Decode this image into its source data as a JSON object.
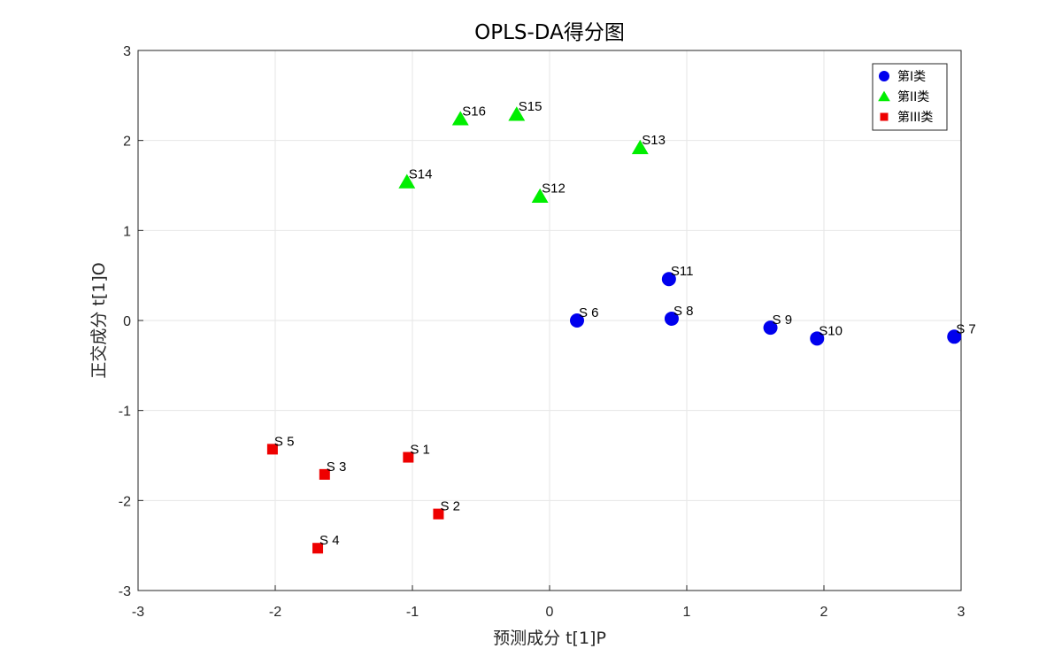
{
  "chart_data": {
    "type": "scatter",
    "title": "OPLS-DA得分图",
    "xlabel": "预测成分 t[1]P",
    "ylabel": "正交成分 t[1]O",
    "xlim": [
      -3,
      3
    ],
    "ylim": [
      -3,
      3
    ],
    "xticks": [
      "-3",
      "-2",
      "-1",
      "0",
      "1",
      "2",
      "3"
    ],
    "yticks": [
      "-3",
      "-2",
      "-1",
      "0",
      "1",
      "2",
      "3"
    ],
    "grid": true,
    "legend_position": "top-right",
    "series": [
      {
        "name": "第I类",
        "marker": "circle",
        "color": "#0000ee",
        "points": [
          {
            "label": "S 6",
            "x": 0.2,
            "y": 0.0
          },
          {
            "label": "S 7",
            "x": 2.95,
            "y": -0.18
          },
          {
            "label": "S 8",
            "x": 0.89,
            "y": 0.02
          },
          {
            "label": "S 9",
            "x": 1.61,
            "y": -0.08
          },
          {
            "label": "S10",
            "x": 1.95,
            "y": -0.2
          },
          {
            "label": "S11",
            "x": 0.87,
            "y": 0.46
          }
        ]
      },
      {
        "name": "第II类",
        "marker": "triangle",
        "color": "#00ee00",
        "points": [
          {
            "label": "S12",
            "x": -0.07,
            "y": 1.38
          },
          {
            "label": "S13",
            "x": 0.66,
            "y": 1.92
          },
          {
            "label": "S14",
            "x": -1.04,
            "y": 1.54
          },
          {
            "label": "S15",
            "x": -0.24,
            "y": 2.29
          },
          {
            "label": "S16",
            "x": -0.65,
            "y": 2.24
          }
        ]
      },
      {
        "name": "第III类",
        "marker": "square",
        "color": "#ee0000",
        "points": [
          {
            "label": "S 1",
            "x": -1.03,
            "y": -1.52
          },
          {
            "label": "S 2",
            "x": -0.81,
            "y": -2.15
          },
          {
            "label": "S 3",
            "x": -1.64,
            "y": -1.71
          },
          {
            "label": "S 4",
            "x": -1.69,
            "y": -2.53
          },
          {
            "label": "S 5",
            "x": -2.02,
            "y": -1.43
          }
        ]
      }
    ]
  }
}
